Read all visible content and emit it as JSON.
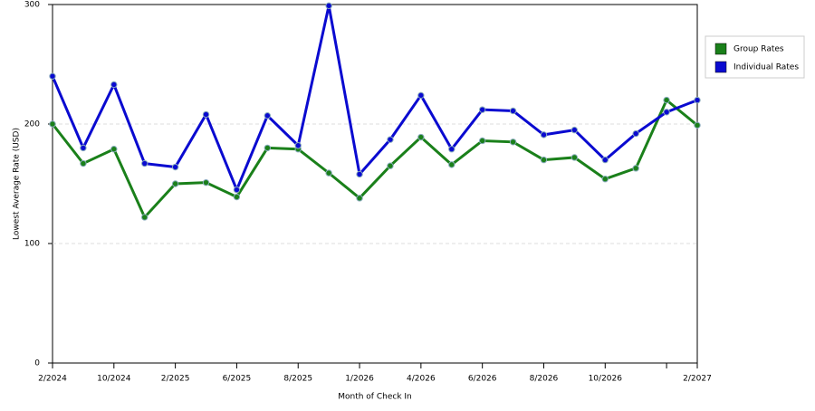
{
  "chart_data": {
    "type": "line",
    "x_label": "Month of Check In",
    "y_label": "Lowest Average Rate (USD)",
    "categories": [
      "2/2024",
      null,
      "10/2024",
      null,
      "2/2025",
      null,
      "6/2025",
      null,
      "8/2025",
      null,
      "1/2026",
      null,
      "4/2026",
      null,
      "6/2026",
      null,
      "8/2026",
      null,
      "10/2026",
      null,
      null,
      "2/2027"
    ],
    "series": [
      {
        "name": "Group Rates",
        "color": "#1a801a",
        "values": [
          200,
          167,
          179,
          122,
          150,
          151,
          139,
          180,
          179,
          159,
          138,
          165,
          189,
          166,
          186,
          185,
          170,
          172,
          154,
          163,
          220,
          199
        ]
      },
      {
        "name": "Individual Rates",
        "color": "#0a0ad0",
        "values": [
          240,
          180,
          233,
          167,
          164,
          208,
          145,
          207,
          182,
          299,
          158,
          187,
          224,
          179,
          212,
          211,
          191,
          195,
          170,
          192,
          210,
          220
        ]
      }
    ],
    "ylim": [
      0,
      300
    ],
    "yticks": [
      0,
      100,
      200,
      300
    ],
    "grid": true,
    "legend": "right"
  }
}
